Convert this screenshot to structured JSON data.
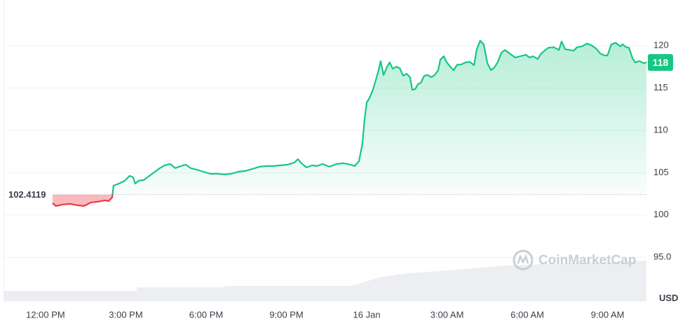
{
  "chart_data": {
    "type": "line",
    "baseline": 102.4119,
    "baseline_label": "102.4119",
    "last_price_label": "118",
    "axis_unit": "USD",
    "watermark": "CoinMarketCap",
    "up_color": "#16c784",
    "down_color": "#ea3943",
    "grid": true,
    "xlim": [
      -1.57,
      22.45
    ],
    "xticks": [
      {
        "value": 0,
        "label": "12:00 PM"
      },
      {
        "value": 3,
        "label": "3:00 PM"
      },
      {
        "value": 6,
        "label": "6:00 PM"
      },
      {
        "value": 9,
        "label": "9:00 PM"
      },
      {
        "value": 12,
        "label": "16 Jan"
      },
      {
        "value": 15,
        "label": "3:00 AM"
      },
      {
        "value": 18,
        "label": "6:00 AM"
      },
      {
        "value": 21,
        "label": "9:00 AM"
      }
    ],
    "ylim": [
      89.8,
      125.4
    ],
    "yticks": [
      {
        "value": 95,
        "label": "95.0"
      },
      100,
      105,
      110,
      115,
      120
    ],
    "x": [
      0.26,
      0.39,
      0.65,
      0.92,
      1.18,
      1.44,
      1.7,
      1.96,
      2.23,
      2.36,
      2.49,
      2.54,
      2.75,
      2.96,
      3.14,
      3.27,
      3.35,
      3.48,
      3.67,
      3.85,
      4.06,
      4.27,
      4.45,
      4.66,
      4.85,
      5.06,
      5.24,
      5.42,
      5.63,
      5.89,
      6.16,
      6.42,
      6.68,
      6.94,
      7.2,
      7.47,
      7.73,
      7.99,
      8.25,
      8.51,
      8.78,
      9.04,
      9.3,
      9.43,
      9.56,
      9.75,
      9.96,
      10.14,
      10.35,
      10.61,
      10.87,
      11.13,
      11.4,
      11.55,
      11.71,
      11.84,
      11.92,
      12.0,
      12.1,
      12.23,
      12.37,
      12.44,
      12.52,
      12.63,
      12.76,
      12.86,
      12.97,
      13.1,
      13.23,
      13.36,
      13.49,
      13.62,
      13.7,
      13.81,
      13.91,
      14.02,
      14.15,
      14.28,
      14.41,
      14.54,
      14.67,
      14.75,
      14.88,
      14.99,
      15.12,
      15.25,
      15.38,
      15.51,
      15.69,
      15.85,
      16.01,
      16.11,
      16.24,
      16.37,
      16.51,
      16.64,
      16.77,
      16.9,
      17.03,
      17.16,
      17.37,
      17.55,
      17.74,
      17.95,
      18.08,
      18.21,
      18.39,
      18.52,
      18.65,
      18.78,
      18.99,
      19.18,
      19.28,
      19.41,
      19.57,
      19.73,
      19.86,
      20.04,
      20.22,
      20.38,
      20.57,
      20.72,
      20.88,
      20.99,
      21.14,
      21.3,
      21.48,
      21.56,
      21.69,
      21.8,
      21.93,
      22.03,
      22.19,
      22.35,
      22.45
    ],
    "values": [
      101.4,
      101.07,
      101.24,
      101.32,
      101.16,
      101.07,
      101.49,
      101.57,
      101.74,
      101.65,
      102.07,
      103.47,
      103.72,
      104.05,
      104.63,
      104.46,
      103.72,
      104.05,
      104.13,
      104.55,
      105.04,
      105.54,
      105.87,
      106.03,
      105.54,
      105.79,
      105.95,
      105.54,
      105.37,
      105.12,
      104.88,
      104.88,
      104.79,
      104.88,
      105.12,
      105.21,
      105.45,
      105.7,
      105.79,
      105.79,
      105.87,
      105.95,
      106.2,
      106.61,
      106.12,
      105.62,
      105.87,
      105.79,
      106.03,
      105.7,
      106.03,
      106.12,
      105.95,
      105.79,
      106.36,
      108.43,
      111.32,
      113.31,
      113.8,
      114.79,
      116.28,
      117.11,
      118.18,
      116.53,
      117.52,
      118.02,
      117.27,
      117.52,
      117.36,
      116.45,
      116.69,
      116.28,
      114.79,
      114.88,
      115.45,
      115.62,
      116.45,
      116.53,
      116.28,
      116.53,
      117.11,
      118.35,
      118.76,
      118.02,
      117.52,
      117.11,
      117.77,
      117.77,
      118.02,
      118.1,
      117.69,
      119.59,
      120.58,
      120.17,
      117.93,
      117.11,
      117.44,
      118.1,
      119.17,
      119.5,
      119.01,
      118.6,
      118.76,
      118.93,
      118.6,
      118.76,
      118.43,
      119.09,
      119.42,
      119.75,
      119.83,
      119.5,
      120.5,
      119.59,
      119.5,
      119.42,
      119.83,
      119.92,
      120.25,
      120.08,
      119.67,
      119.09,
      118.84,
      118.84,
      120.17,
      120.33,
      119.92,
      120.17,
      119.83,
      119.75,
      118.51,
      118.02,
      118.18,
      117.93,
      118.02
    ]
  }
}
